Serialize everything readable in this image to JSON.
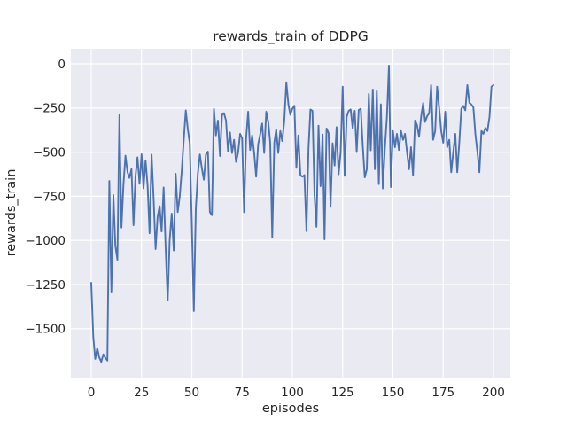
{
  "figure": {
    "background": "#ffffff"
  },
  "chart_data": {
    "type": "line",
    "title": "rewards_train of DDPG",
    "xlabel": "episodes",
    "ylabel": "rewards_train",
    "legend": "none",
    "grid": true,
    "xlim": [
      -10,
      208.5
    ],
    "ylim": [
      -1777,
      85
    ],
    "x_ticks": [
      {
        "value": 0,
        "label": "0"
      },
      {
        "value": 25,
        "label": "25"
      },
      {
        "value": 50,
        "label": "50"
      },
      {
        "value": 75,
        "label": "75"
      },
      {
        "value": 100,
        "label": "100"
      },
      {
        "value": 125,
        "label": "125"
      },
      {
        "value": 150,
        "label": "150"
      },
      {
        "value": 175,
        "label": "175"
      },
      {
        "value": 200,
        "label": "200"
      }
    ],
    "y_ticks": [
      {
        "value": 0,
        "label": "0"
      },
      {
        "value": -250,
        "label": "−250"
      },
      {
        "value": -500,
        "label": "−500"
      },
      {
        "value": -750,
        "label": "−750"
      },
      {
        "value": -1000,
        "label": "−1000"
      },
      {
        "value": -1250,
        "label": "−1250"
      },
      {
        "value": -1500,
        "label": "−1500"
      }
    ],
    "style": {
      "line_color": "#4C72B0",
      "axes_background": "#EAEAF2",
      "grid_color": "#FFFFFF",
      "text_color": "#262626"
    },
    "series": [
      {
        "name": "rewards_train",
        "x_start": 0,
        "x_step": 1,
        "values": [
          -1240,
          -1546,
          -1671,
          -1610,
          -1663,
          -1688,
          -1645,
          -1665,
          -1680,
          -663,
          -1290,
          -743,
          -1030,
          -1110,
          -290,
          -927,
          -688,
          -520,
          -612,
          -646,
          -596,
          -914,
          -638,
          -529,
          -679,
          -512,
          -705,
          -546,
          -688,
          -960,
          -514,
          -764,
          -1049,
          -865,
          -806,
          -950,
          -700,
          -1050,
          -1340,
          -1000,
          -848,
          -1057,
          -622,
          -840,
          -750,
          -600,
          -430,
          -263,
          -371,
          -450,
          -900,
          -1400,
          -823,
          -622,
          -513,
          -590,
          -656,
          -514,
          -497,
          -840,
          -857,
          -255,
          -405,
          -321,
          -522,
          -288,
          -279,
          -321,
          -497,
          -388,
          -505,
          -430,
          -555,
          -505,
          -396,
          -421,
          -840,
          -422,
          -271,
          -488,
          -405,
          -505,
          -639,
          -455,
          -400,
          -338,
          -505,
          -271,
          -329,
          -447,
          -982,
          -447,
          -371,
          -505,
          -380,
          -438,
          -321,
          -104,
          -229,
          -288,
          -254,
          -237,
          -589,
          -405,
          -631,
          -639,
          -630,
          -948,
          -480,
          -258,
          -266,
          -743,
          -923,
          -350,
          -693,
          -400,
          -994,
          -366,
          -392,
          -810,
          -450,
          -576,
          -358,
          -626,
          -500,
          -129,
          -634,
          -300,
          -266,
          -258,
          -366,
          -266,
          -500,
          -261,
          -254,
          -458,
          -643,
          -597,
          -170,
          -490,
          -145,
          -597,
          -154,
          -681,
          -229,
          -706,
          -480,
          -300,
          -10,
          -698,
          -380,
          -472,
          -396,
          -488,
          -380,
          -430,
          -396,
          -500,
          -597,
          -472,
          -631,
          -321,
          -346,
          -413,
          -300,
          -221,
          -329,
          -296,
          -280,
          -120,
          -430,
          -380,
          -129,
          -250,
          -380,
          -447,
          -271,
          -472,
          -430,
          -614,
          -500,
          -396,
          -614,
          -447,
          -254,
          -238,
          -263,
          -120,
          -221,
          -229,
          -246,
          -400,
          -497,
          -614,
          -380,
          -396,
          -363,
          -380,
          -300,
          -129,
          -120
        ]
      }
    ]
  }
}
